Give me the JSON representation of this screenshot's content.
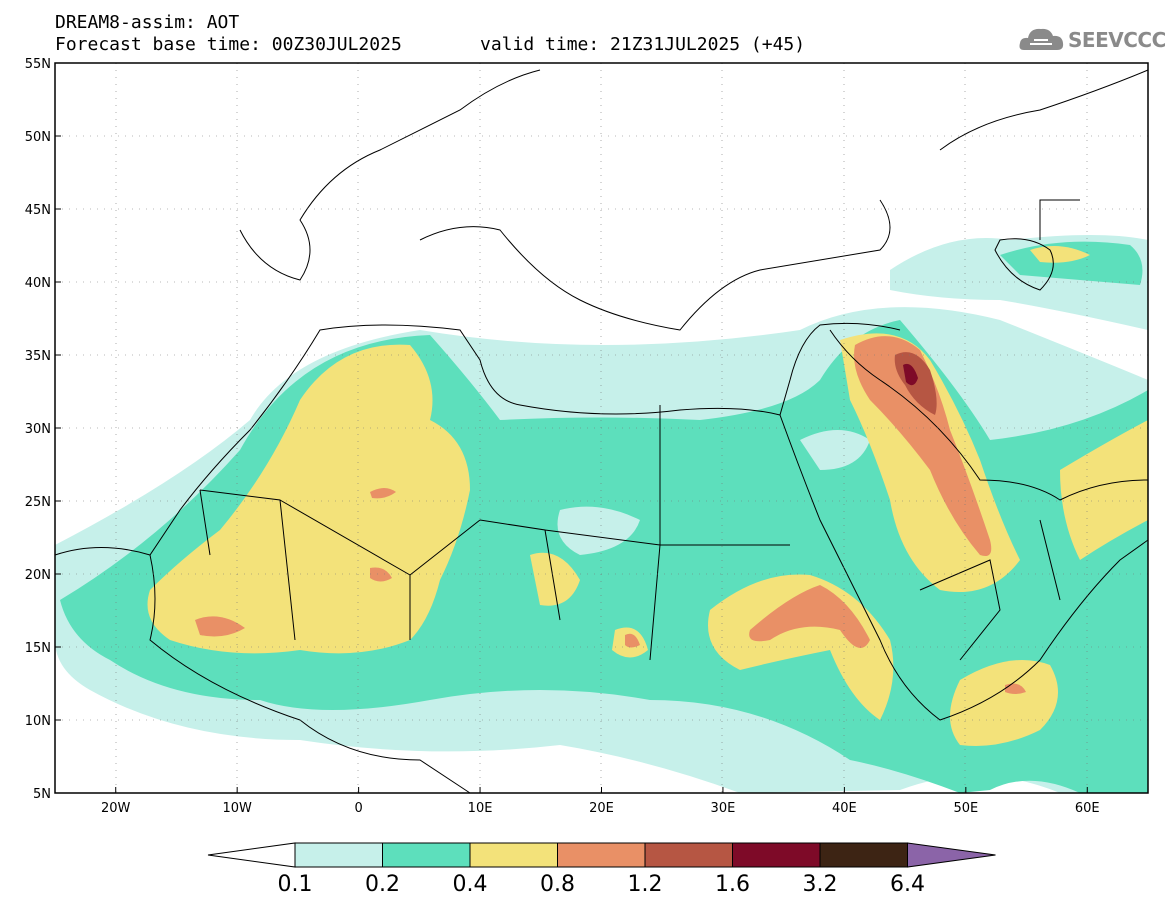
{
  "header": {
    "line1": "DREAM8-assim: AOT",
    "base_time": "Forecast base time: 00Z30JUL2025",
    "valid_time": "valid time: 21Z31JUL2025 (+45)",
    "logo_text": "SEEVCCC"
  },
  "map": {
    "lon_range": [
      -25,
      65
    ],
    "lat_range": [
      5,
      55
    ],
    "y_ticks": [
      "5N",
      "10N",
      "15N",
      "20N",
      "25N",
      "30N",
      "35N",
      "40N",
      "45N",
      "50N",
      "55N"
    ],
    "x_ticks": [
      "20W",
      "10W",
      "0",
      "10E",
      "20E",
      "30E",
      "40E",
      "50E",
      "60E"
    ],
    "grid": "dotted",
    "variable": "AOT"
  },
  "colorbar": {
    "labels": [
      "0.1",
      "0.2",
      "0.4",
      "0.8",
      "1.2",
      "1.6",
      "3.2",
      "6.4"
    ],
    "colors": [
      "#c6f0ea",
      "#5ddfbc",
      "#f3e27a",
      "#e99066",
      "#b65643",
      "#7e0a28",
      "#3d2414",
      "#8b64a8"
    ]
  }
}
